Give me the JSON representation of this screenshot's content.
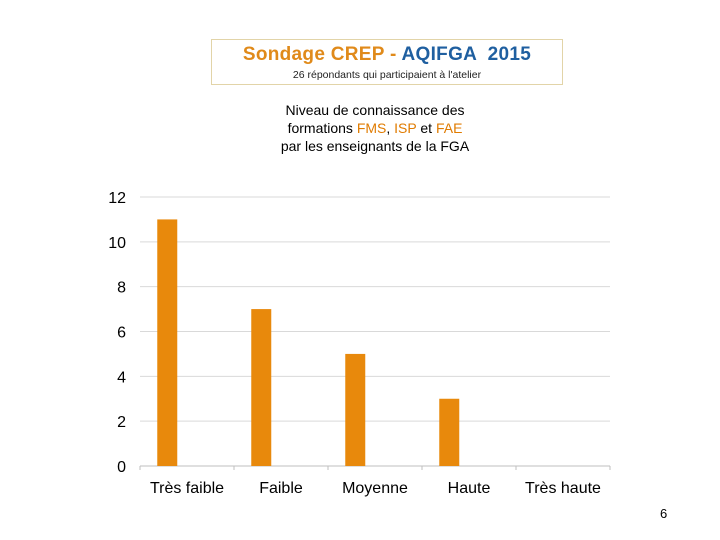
{
  "header": {
    "title_part1": "Sondage CREP - ",
    "title_part2": "AQIFGA",
    "title_part3": "  2015",
    "subtitle": "26 répondants qui participaient à l'atelier"
  },
  "chart_heading": {
    "line1": "Niveau de connaissance des",
    "line2_prefix": "formations ",
    "fms": "FMS",
    "sep1": ", ",
    "isp": "ISP",
    "sep2": " et ",
    "fae": "FAE",
    "line3": "par les enseignants de la FGA"
  },
  "chart_data": {
    "type": "bar",
    "categories": [
      "Très faible",
      "Faible",
      "Moyenne",
      "Haute",
      "Très haute"
    ],
    "values": [
      11,
      7,
      5,
      3,
      0
    ],
    "ylim": [
      0,
      12
    ],
    "yticks": [
      0,
      2,
      4,
      6,
      8,
      10,
      12
    ],
    "grid": true,
    "bar_color": "#e8890c"
  },
  "page_number": "6"
}
